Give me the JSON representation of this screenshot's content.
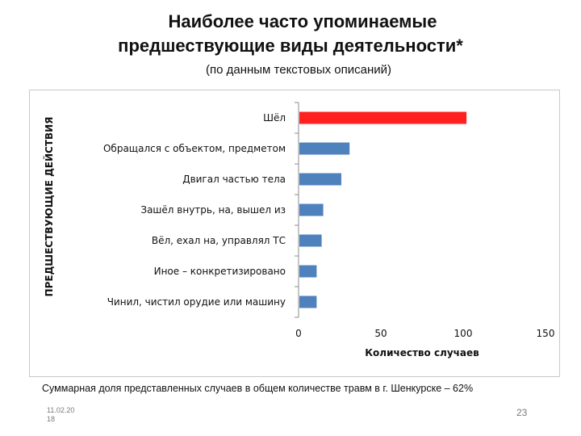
{
  "slide": {
    "title_line1": "Наиболее часто упоминаемые",
    "title_line2": "предшествующие виды деятельности*",
    "subtitle": "(по данным текстовых описаний)",
    "footnote": "Суммарная доля представленных случаев в общем количестве травм в  г. Шенкурске – 62%",
    "date_line1": "11.02.20",
    "date_line2": "18",
    "page_number": "23"
  },
  "chart_data": {
    "type": "bar",
    "orientation": "horizontal",
    "categories": [
      "Шёл",
      "Обращался с объектом, предметом",
      "Двигал частью тела",
      "Зашёл внутрь, на, вышел из",
      "Вёл, ехал на, управлял ТС",
      "Иное – конкретизировано",
      "Чинил, чистил орудие или машину"
    ],
    "values": [
      102,
      31,
      26,
      15,
      14,
      11,
      11
    ],
    "colors": [
      "#ff2020",
      "#4f81bd",
      "#4f81bd",
      "#4f81bd",
      "#4f81bd",
      "#4f81bd",
      "#4f81bd"
    ],
    "xlabel": "Количество случаев",
    "ylabel": "ПРЕДШЕСТВУЮЩИЕ ДЕЙСТВИЯ",
    "xlim": [
      0,
      150
    ],
    "xticks": [
      "0",
      "50",
      "100",
      "150"
    ],
    "grid": false,
    "legend": "none"
  }
}
